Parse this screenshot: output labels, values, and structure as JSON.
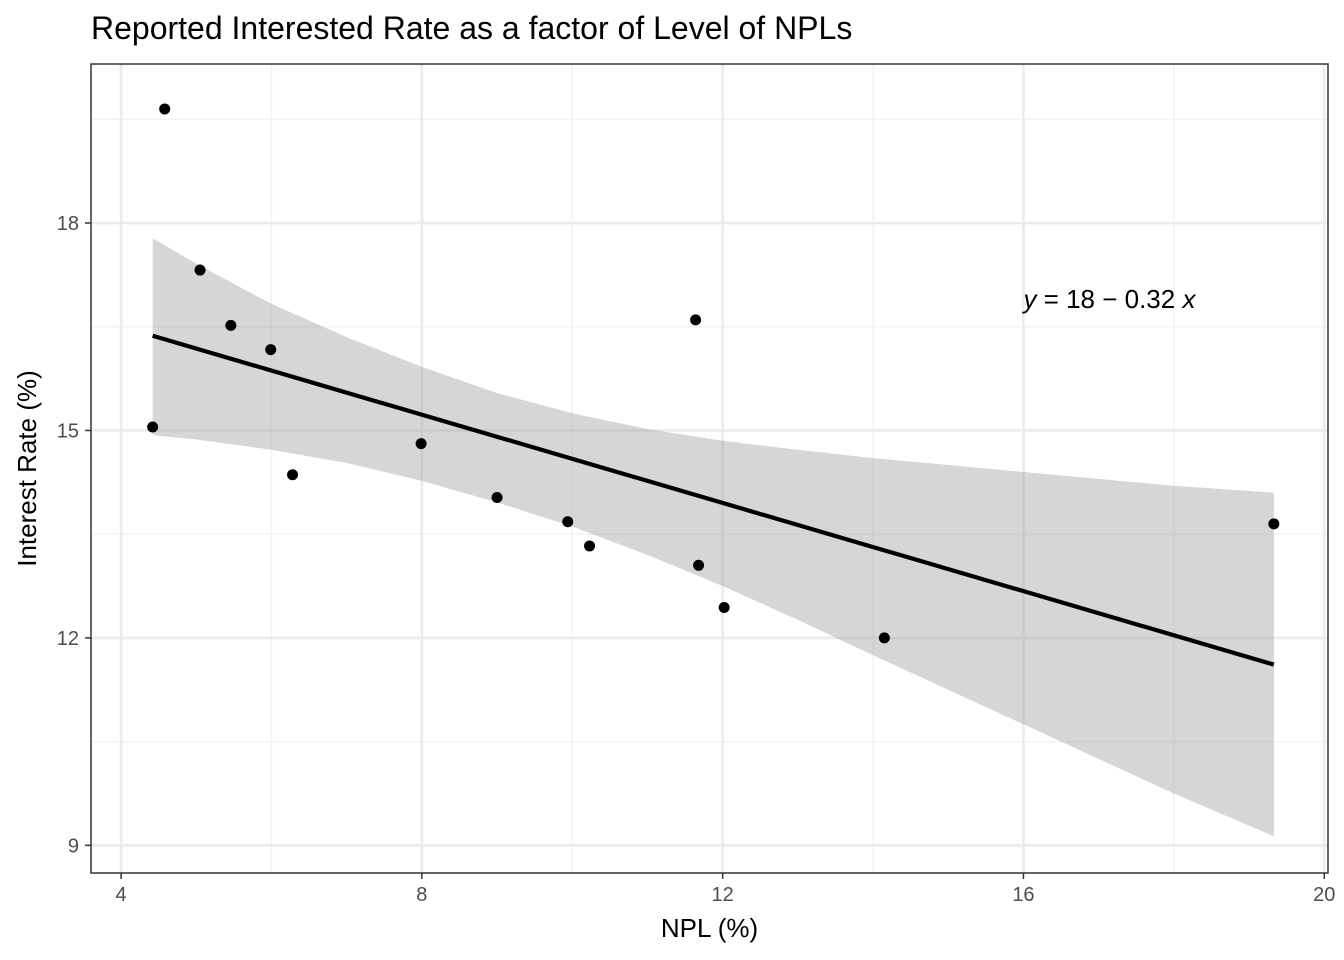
{
  "chart_data": {
    "type": "scatter",
    "title": "Reported Interested Rate as a factor of Level of NPLs",
    "xlabel": "NPL (%)",
    "ylabel": "Interest Rate (%)",
    "xlim": [
      3.6,
      20.05
    ],
    "ylim": [
      8.6,
      20.3
    ],
    "x_ticks": [
      4,
      8,
      12,
      16,
      20
    ],
    "y_ticks": [
      9,
      12,
      15,
      18
    ],
    "x_minor": [
      6,
      10,
      14,
      18
    ],
    "y_minor": [
      10.5,
      13.5,
      16.5,
      19.5
    ],
    "grid": true,
    "points": [
      {
        "x": 4.42,
        "y": 15.05
      },
      {
        "x": 4.58,
        "y": 19.65
      },
      {
        "x": 5.05,
        "y": 17.32
      },
      {
        "x": 5.46,
        "y": 16.52
      },
      {
        "x": 5.99,
        "y": 16.17
      },
      {
        "x": 6.28,
        "y": 14.36
      },
      {
        "x": 7.99,
        "y": 14.81
      },
      {
        "x": 9.0,
        "y": 14.03
      },
      {
        "x": 9.94,
        "y": 13.68
      },
      {
        "x": 10.23,
        "y": 13.33
      },
      {
        "x": 11.64,
        "y": 16.6
      },
      {
        "x": 11.68,
        "y": 13.05
      },
      {
        "x": 12.02,
        "y": 12.44
      },
      {
        "x": 14.15,
        "y": 12.0
      },
      {
        "x": 19.33,
        "y": 13.65
      }
    ],
    "fit": {
      "intercept": 17.78,
      "slope": -0.319,
      "x_range": [
        4.42,
        19.33
      ]
    },
    "confidence_band": [
      {
        "x": 4.42,
        "lo": 14.93,
        "hi": 17.78
      },
      {
        "x": 5.0,
        "lo": 14.87,
        "hi": 17.41
      },
      {
        "x": 6.0,
        "lo": 14.72,
        "hi": 16.83
      },
      {
        "x": 7.0,
        "lo": 14.53,
        "hi": 16.35
      },
      {
        "x": 8.0,
        "lo": 14.27,
        "hi": 15.92
      },
      {
        "x": 9.0,
        "lo": 13.96,
        "hi": 15.54
      },
      {
        "x": 10.0,
        "lo": 13.61,
        "hi": 15.25
      },
      {
        "x": 11.0,
        "lo": 13.2,
        "hi": 15.02
      },
      {
        "x": 12.0,
        "lo": 12.75,
        "hi": 14.85
      },
      {
        "x": 13.0,
        "lo": 12.26,
        "hi": 14.72
      },
      {
        "x": 14.0,
        "lo": 11.75,
        "hi": 14.6
      },
      {
        "x": 15.0,
        "lo": 11.25,
        "hi": 14.5
      },
      {
        "x": 16.0,
        "lo": 10.75,
        "hi": 14.4
      },
      {
        "x": 17.0,
        "lo": 10.25,
        "hi": 14.3
      },
      {
        "x": 18.0,
        "lo": 9.75,
        "hi": 14.2
      },
      {
        "x": 19.33,
        "lo": 9.13,
        "hi": 14.1
      }
    ],
    "equation": {
      "lhs": "y",
      "rhs": " = 18 − 0.32 ",
      "var": "x",
      "x": 16.0,
      "y": 16.9
    },
    "colors": {
      "point": "#000000",
      "fit_line": "#000000",
      "band": "#999999",
      "grid_major": "#ebebeb",
      "grid_minor": "#f2f2f2",
      "panel_border": "#333333"
    }
  }
}
